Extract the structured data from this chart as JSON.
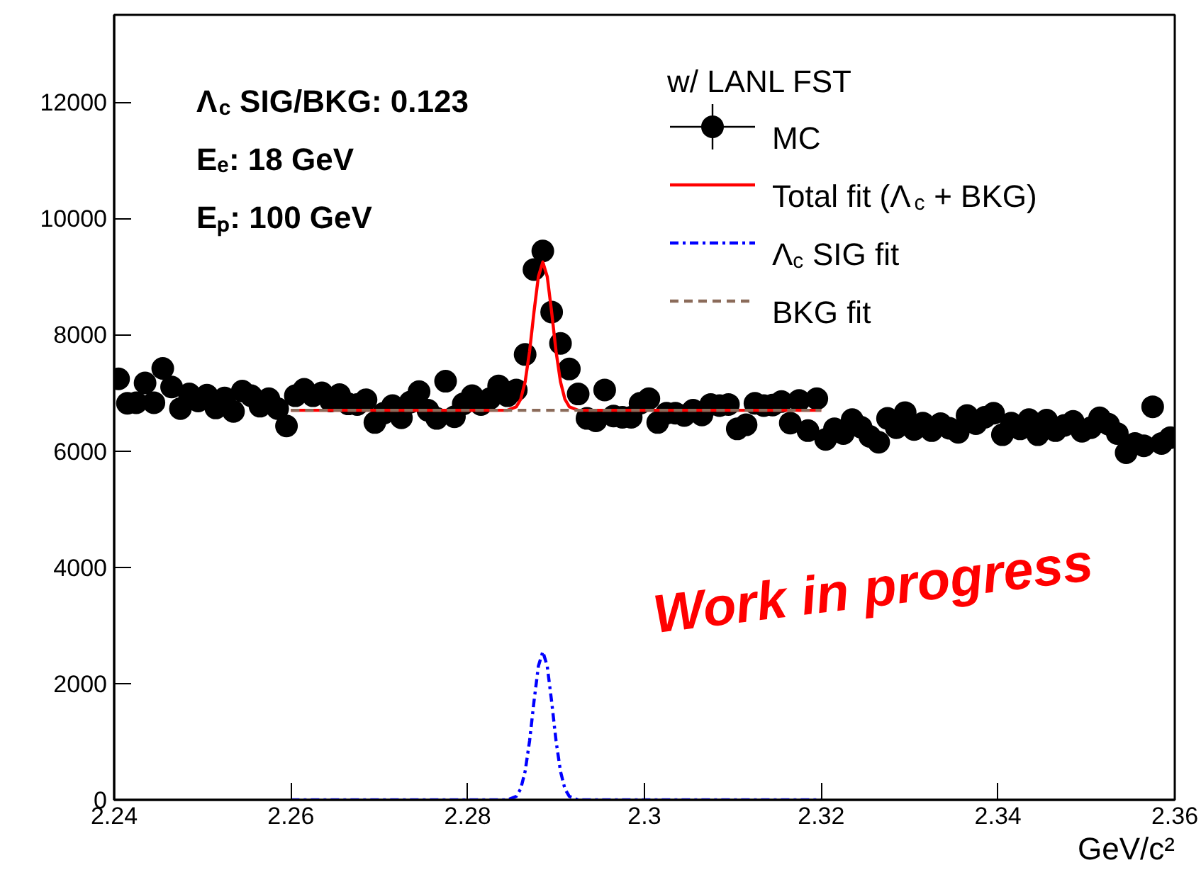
{
  "chart_data": {
    "type": "scatter",
    "xlabel": "GeV/c²",
    "legend_title": "w/ LANL FST",
    "x": [
      2.2405,
      2.2415,
      2.2425,
      2.2435,
      2.2445,
      2.2455,
      2.2465,
      2.2475,
      2.2485,
      2.2495,
      2.2505,
      2.2515,
      2.2525,
      2.2535,
      2.2545,
      2.2555,
      2.2565,
      2.2575,
      2.2585,
      2.2595,
      2.2605,
      2.2615,
      2.2625,
      2.2635,
      2.2645,
      2.2655,
      2.2665,
      2.2675,
      2.2685,
      2.2695,
      2.2705,
      2.2715,
      2.2725,
      2.2735,
      2.2745,
      2.2755,
      2.2765,
      2.2775,
      2.2785,
      2.2795,
      2.2805,
      2.2815,
      2.2825,
      2.2835,
      2.2845,
      2.2855,
      2.2865,
      2.2875,
      2.2885,
      2.2895,
      2.2905,
      2.2915,
      2.2925,
      2.2935,
      2.2945,
      2.2955,
      2.2965,
      2.2975,
      2.2985,
      2.2995,
      2.3005,
      2.3015,
      2.3025,
      2.3035,
      2.3045,
      2.3055,
      2.3065,
      2.3075,
      2.3085,
      2.3095,
      2.3105,
      2.3115,
      2.3125,
      2.3135,
      2.3145,
      2.3155,
      2.3165,
      2.3175,
      2.3185,
      2.3195,
      2.3205,
      2.3215,
      2.3225,
      2.3235,
      2.3245,
      2.3255,
      2.3265,
      2.3275,
      2.3285,
      2.3295,
      2.3305,
      2.3315,
      2.3325,
      2.3335,
      2.3345,
      2.3355,
      2.3365,
      2.3375,
      2.3385,
      2.3395,
      2.3405,
      2.3415,
      2.3425,
      2.3435,
      2.3445,
      2.3455,
      2.3465,
      2.3475,
      2.3485,
      2.3495,
      2.3505,
      2.3515,
      2.3525,
      2.3535,
      2.3545,
      2.3555,
      2.3565,
      2.3575,
      2.3585,
      2.3595
    ],
    "series": [
      {
        "name": "MC",
        "color": "#000000",
        "marker": "circle",
        "values": [
          7240,
          6820,
          6830,
          7170,
          6830,
          7420,
          7100,
          6730,
          6980,
          6860,
          6960,
          6740,
          6910,
          6680,
          7030,
          6950,
          6770,
          6900,
          6730,
          6430,
          6950,
          7060,
          6950,
          7000,
          6860,
          6970,
          6810,
          6800,
          6880,
          6490,
          6650,
          6780,
          6570,
          6840,
          7020,
          6700,
          6560,
          7200,
          6590,
          6810,
          6950,
          6800,
          6900,
          7120,
          6950,
          7050,
          7660,
          9120,
          9440,
          8390,
          7850,
          7410,
          6980,
          6560,
          6520,
          7050,
          6600,
          6580,
          6580,
          6820,
          6900,
          6490,
          6650,
          6650,
          6610,
          6700,
          6620,
          6800,
          6780,
          6800,
          6380,
          6450,
          6820,
          6780,
          6790,
          6850,
          6480,
          6870,
          6350,
          6900,
          6200,
          6380,
          6300,
          6540,
          6410,
          6250,
          6150,
          6560,
          6400,
          6660,
          6370,
          6480,
          6350,
          6470,
          6390,
          6320,
          6610,
          6470,
          6580,
          6650,
          6280,
          6480,
          6380,
          6540,
          6280,
          6530,
          6350,
          6440,
          6510,
          6340,
          6400,
          6570,
          6460,
          6300,
          5970,
          6130,
          6090,
          6760,
          6130,
          6230
        ]
      },
      {
        "name": "Total fit (Λ$_{c}$ + BKG)",
        "type": "line",
        "color": "#ff0000",
        "line_style": "solid",
        "x": [
          2.26,
          2.2845,
          2.2855,
          2.286,
          2.2865,
          2.287,
          2.2875,
          2.288,
          2.2885,
          2.289,
          2.2895,
          2.29,
          2.2905,
          2.291,
          2.2915,
          2.2925,
          2.32
        ],
        "values": [
          6700,
          6700,
          6760,
          6890,
          7190,
          7710,
          8390,
          9000,
          9250,
          9000,
          8390,
          7710,
          7190,
          6890,
          6760,
          6700,
          6700
        ]
      },
      {
        "name": "Λ$_{c}$ SIG fit",
        "type": "line",
        "color": "#0000ff",
        "line_style": "dashdot",
        "x": [
          2.26,
          2.2845,
          2.2855,
          2.286,
          2.2865,
          2.287,
          2.2875,
          2.288,
          2.2885,
          2.289,
          2.2895,
          2.29,
          2.2905,
          2.291,
          2.2915,
          2.2925,
          2.32
        ],
        "values": [
          0,
          0,
          60,
          190,
          490,
          1010,
          1690,
          2300,
          2550,
          2300,
          1690,
          1010,
          490,
          190,
          60,
          0,
          0
        ]
      },
      {
        "name": "BKG fit",
        "type": "line",
        "color": "#8b6b5a",
        "line_style": "dashed",
        "x": [
          2.26,
          2.32
        ],
        "values": [
          6700,
          6700
        ]
      }
    ],
    "xlim": [
      2.24,
      2.36
    ],
    "ylim": [
      0,
      13500
    ],
    "xticks": [
      2.24,
      2.26,
      2.28,
      2.3,
      2.32,
      2.34,
      2.36
    ],
    "yticks": [
      0,
      2000,
      4000,
      6000,
      8000,
      10000,
      12000
    ],
    "legend": "top right",
    "grid": false,
    "annotations": [
      "Λ$_{c}$ SIG/BKG: 0.123",
      "Eₑ: 18 GeV",
      "Eₚ: 100 GeV",
      "Work in progress"
    ]
  }
}
